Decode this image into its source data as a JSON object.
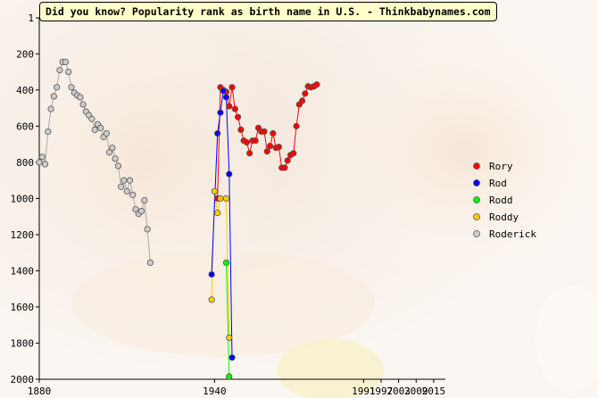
{
  "chart_data": {
    "type": "line",
    "title": "Did you know? Popularity rank as birth name in U.S. - Thinkbabynames.com",
    "xlabel": "",
    "ylabel": "",
    "xlim": [
      1880,
      2019
    ],
    "ylim": [
      1,
      2000
    ],
    "y_inverted": true,
    "x_ticks": [
      1880,
      1940,
      1991,
      1997,
      2003,
      2009,
      2015
    ],
    "x_tick_labels": [
      "1880",
      "1940",
      "1991",
      "1997",
      "2003",
      "2009",
      "2015"
    ],
    "y_ticks": [
      1,
      200,
      400,
      600,
      800,
      1000,
      1200,
      1400,
      1600,
      1800,
      2000
    ],
    "y_tick_labels": [
      "1",
      "200",
      "400",
      "600",
      "800",
      "1000",
      "1200",
      "1400",
      "1600",
      "1800",
      "2000"
    ],
    "grid": false,
    "legend_position": "right",
    "series": [
      {
        "name": "Rory",
        "color": "#ff0000",
        "points": [
          [
            1941,
            1000
          ],
          [
            1942,
            385
          ],
          [
            1943,
            400
          ],
          [
            1944,
            410
          ],
          [
            1945,
            490
          ],
          [
            1946,
            385
          ],
          [
            1947,
            505
          ],
          [
            1948,
            550
          ],
          [
            1949,
            620
          ],
          [
            1950,
            680
          ],
          [
            1951,
            690
          ],
          [
            1952,
            750
          ],
          [
            1953,
            680
          ],
          [
            1954,
            680
          ],
          [
            1955,
            610
          ],
          [
            1956,
            630
          ],
          [
            1957,
            630
          ],
          [
            1958,
            740
          ],
          [
            1959,
            710
          ],
          [
            1960,
            640
          ],
          [
            1961,
            720
          ],
          [
            1962,
            715
          ],
          [
            1963,
            830
          ],
          [
            1964,
            830
          ],
          [
            1965,
            790
          ],
          [
            1966,
            760
          ],
          [
            1967,
            750
          ],
          [
            1968,
            600
          ],
          [
            1969,
            480
          ],
          [
            1970,
            460
          ],
          [
            1971,
            420
          ],
          [
            1972,
            380
          ],
          [
            1973,
            385
          ],
          [
            1974,
            380
          ],
          [
            1975,
            370
          ]
        ]
      },
      {
        "name": "Rod",
        "color": "#0000ff",
        "points": [
          [
            1939,
            1420
          ],
          [
            1941,
            640
          ],
          [
            1942,
            525
          ],
          [
            1943,
            405
          ],
          [
            1944,
            440
          ],
          [
            1945,
            865
          ],
          [
            1946,
            1880
          ]
        ]
      },
      {
        "name": "Rodd",
        "color": "#00ff00",
        "points": [
          [
            1944,
            1355
          ],
          [
            1945,
            1985
          ]
        ]
      },
      {
        "name": "Roddy",
        "color": "#ffcc00",
        "points": [
          [
            1939,
            1560
          ],
          [
            1940,
            960
          ],
          [
            1941,
            1080
          ],
          [
            1942,
            1000
          ],
          [
            1944,
            1000
          ],
          [
            1945,
            1770
          ]
        ]
      },
      {
        "name": "Roderick",
        "color": "#cccccc",
        "points": [
          [
            1880,
            800
          ],
          [
            1881,
            770
          ],
          [
            1882,
            810
          ],
          [
            1883,
            630
          ],
          [
            1884,
            505
          ],
          [
            1885,
            435
          ],
          [
            1886,
            385
          ],
          [
            1887,
            290
          ],
          [
            1888,
            245
          ],
          [
            1889,
            245
          ],
          [
            1890,
            300
          ],
          [
            1891,
            385
          ],
          [
            1892,
            415
          ],
          [
            1893,
            430
          ],
          [
            1894,
            440
          ],
          [
            1895,
            480
          ],
          [
            1896,
            520
          ],
          [
            1897,
            540
          ],
          [
            1898,
            560
          ],
          [
            1899,
            620
          ],
          [
            1900,
            590
          ],
          [
            1901,
            610
          ],
          [
            1902,
            660
          ],
          [
            1903,
            640
          ],
          [
            1904,
            745
          ],
          [
            1905,
            720
          ],
          [
            1906,
            780
          ],
          [
            1907,
            820
          ],
          [
            1908,
            935
          ],
          [
            1909,
            900
          ],
          [
            1910,
            960
          ],
          [
            1911,
            900
          ],
          [
            1912,
            980
          ],
          [
            1913,
            1060
          ],
          [
            1914,
            1085
          ],
          [
            1915,
            1070
          ],
          [
            1916,
            1010
          ],
          [
            1917,
            1170
          ],
          [
            1918,
            1355
          ]
        ]
      }
    ]
  }
}
